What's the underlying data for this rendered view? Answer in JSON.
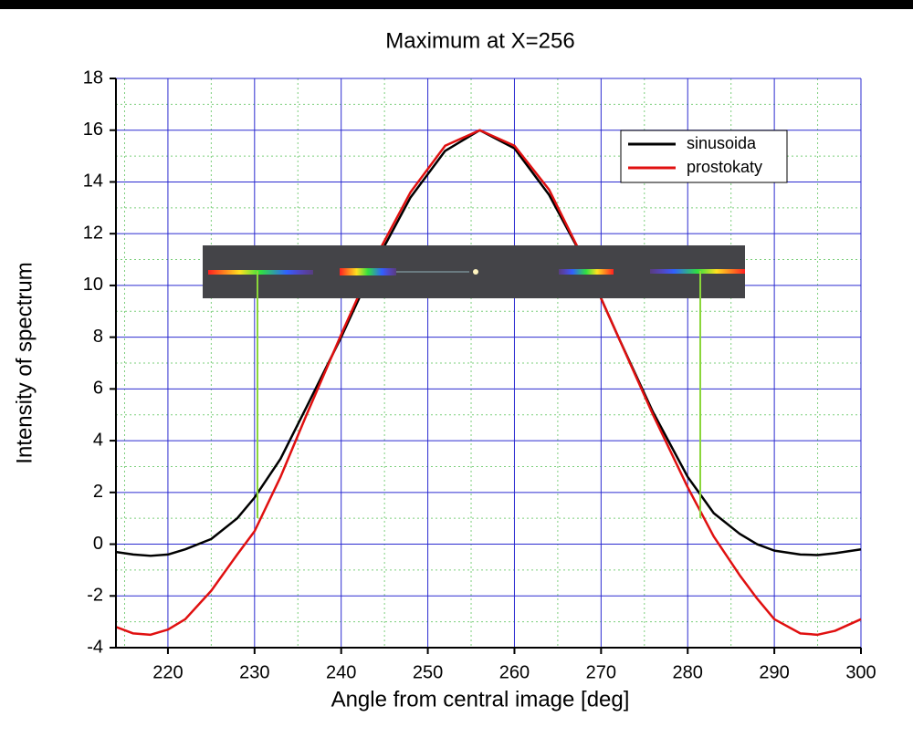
{
  "chart_data": {
    "type": "line",
    "title": "Maximum at X=256",
    "x_label": "Angle from central image [deg]",
    "y_label": "Intensity of spectrum",
    "x": [
      214,
      216,
      218,
      220,
      222,
      225,
      228,
      230,
      233,
      236,
      240,
      244,
      248,
      252,
      256,
      260,
      264,
      268,
      272,
      276,
      280,
      283,
      286,
      288,
      290,
      293,
      295,
      297,
      300
    ],
    "series": [
      {
        "name": "sinusoida",
        "color": "#000000",
        "values": [
          -0.3,
          -0.4,
          -0.45,
          -0.4,
          -0.2,
          0.2,
          1.0,
          1.8,
          3.3,
          5.3,
          8.0,
          10.9,
          13.4,
          15.2,
          16.0,
          15.3,
          13.5,
          11.0,
          8.0,
          5.1,
          2.6,
          1.2,
          0.4,
          0.0,
          -0.25,
          -0.4,
          -0.42,
          -0.35,
          -0.2
        ]
      },
      {
        "name": "prostokaty",
        "color": "#e01010",
        "values": [
          -3.2,
          -3.45,
          -3.5,
          -3.3,
          -2.9,
          -1.8,
          -0.4,
          0.5,
          2.6,
          5.0,
          8.1,
          11.1,
          13.6,
          15.4,
          16.0,
          15.4,
          13.7,
          11.0,
          8.0,
          5.0,
          2.2,
          0.3,
          -1.2,
          -2.1,
          -2.9,
          -3.45,
          -3.5,
          -3.35,
          -2.9
        ]
      }
    ],
    "xlim": [
      214,
      300
    ],
    "xticks": [
      220,
      230,
      240,
      250,
      260,
      270,
      280,
      290,
      300
    ],
    "ylim": [
      -4,
      18
    ],
    "yticks": [
      -4,
      -2,
      0,
      2,
      4,
      6,
      8,
      10,
      12,
      14,
      16,
      18
    ],
    "grid": true,
    "legend": "upper right"
  }
}
